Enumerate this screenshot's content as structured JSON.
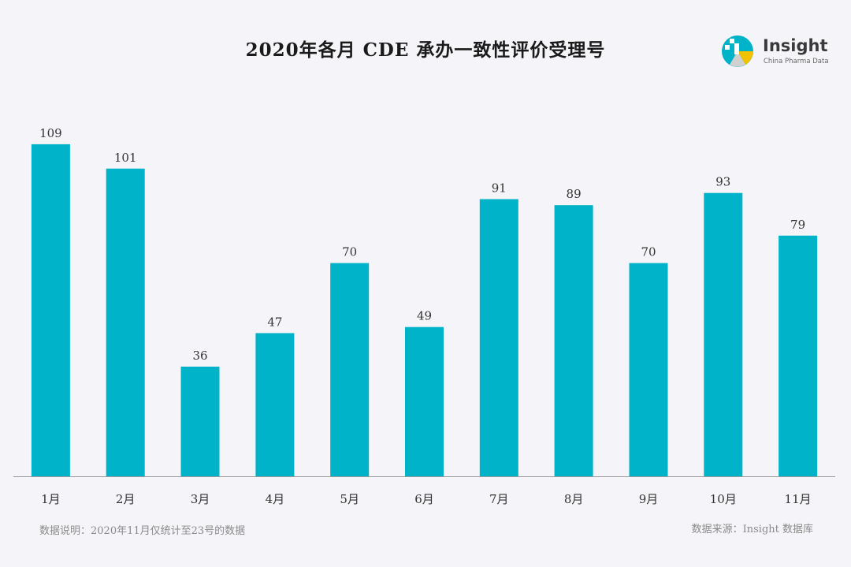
{
  "chart_data": {
    "type": "bar",
    "title": "2020年各月 CDE 承办一致性评价受理号",
    "categories": [
      "1月",
      "2月",
      "3月",
      "4月",
      "5月",
      "6月",
      "7月",
      "8月",
      "9月",
      "10月",
      "11月"
    ],
    "values": [
      109,
      101,
      36,
      47,
      70,
      49,
      91,
      89,
      70,
      93,
      79
    ],
    "xlabel": "",
    "ylabel": "",
    "ylim": [
      0,
      115
    ],
    "grid": false,
    "legend": "none",
    "bar_color": "#00b3c9"
  },
  "footer": {
    "note": "数据说明：2020年11月仅统计至23号的数据",
    "source": "数据来源：Insight 数据库"
  },
  "logo": {
    "name": "Insight",
    "tagline": "China Pharma Data"
  }
}
